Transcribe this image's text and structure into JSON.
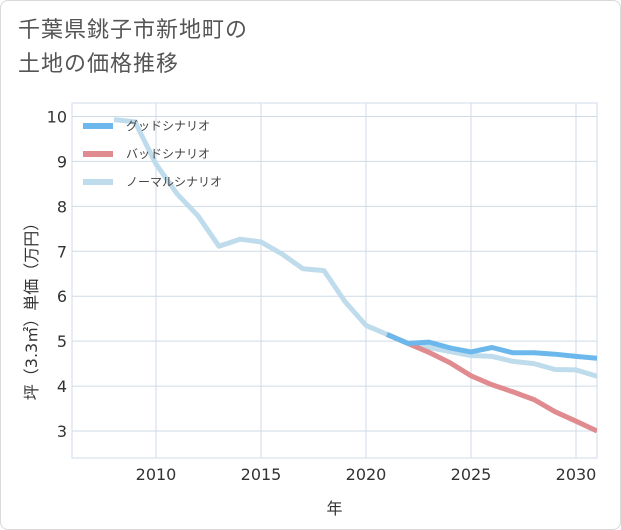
{
  "title_line1": "千葉県銚子市新地町の",
  "title_line2": "土地の価格推移",
  "chart_data": {
    "type": "line",
    "xlabel": "年",
    "ylabel": "坪（3.3㎡）単価（万円）",
    "xlim": [
      2006,
      2031
    ],
    "ylim": [
      2.4,
      10.3
    ],
    "x_ticks": [
      2010,
      2015,
      2020,
      2025,
      2030
    ],
    "y_ticks": [
      3,
      4,
      5,
      6,
      7,
      8,
      9,
      10
    ],
    "grid": true,
    "legend_position": "top-left",
    "series": [
      {
        "name": "グッドシナリオ",
        "color": "#6cb8ec",
        "x": [
          2021,
          2022,
          2023,
          2024,
          2025,
          2026,
          2027,
          2028,
          2029,
          2030,
          2031
        ],
        "y": [
          5.15,
          4.95,
          4.98,
          4.85,
          4.76,
          4.86,
          4.74,
          4.74,
          4.71,
          4.66,
          4.62
        ]
      },
      {
        "name": "バッドシナリオ",
        "color": "#e08b8f",
        "x": [
          2021,
          2022,
          2023,
          2024,
          2025,
          2026,
          2027,
          2028,
          2029,
          2030,
          2031
        ],
        "y": [
          5.15,
          4.95,
          4.75,
          4.52,
          4.23,
          4.03,
          3.87,
          3.7,
          3.43,
          3.22,
          3.0
        ]
      },
      {
        "name": "ノーマルシナリオ",
        "color": "#bfdcec",
        "x": [
          2008,
          2009,
          2010,
          2011,
          2012,
          2013,
          2014,
          2015,
          2016,
          2017,
          2018,
          2019,
          2020,
          2021,
          2022,
          2023,
          2024,
          2025,
          2026,
          2027,
          2028,
          2029,
          2030,
          2031
        ],
        "y": [
          9.93,
          9.88,
          8.94,
          8.28,
          7.79,
          7.11,
          7.27,
          7.21,
          6.94,
          6.61,
          6.57,
          5.88,
          5.35,
          5.15,
          4.95,
          4.86,
          4.77,
          4.68,
          4.66,
          4.55,
          4.5,
          4.37,
          4.36,
          4.22
        ]
      }
    ]
  }
}
